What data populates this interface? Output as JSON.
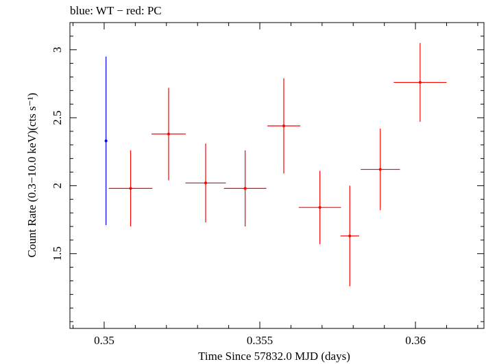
{
  "chart_data": {
    "type": "scatter",
    "title": "blue: WT − red: PC",
    "xlabel": "Time Since 57832.0 MJD (days)",
    "ylabel": "Count Rate (0.3−10.0 keV)(cts s⁻¹)",
    "xlim": [
      0.3489,
      0.3622
    ],
    "ylim": [
      0.95,
      3.2
    ],
    "x_ticks": [
      0.35,
      0.355,
      0.36
    ],
    "x_tick_labels": [
      "0.35",
      "0.355",
      "0.36"
    ],
    "y_ticks": [
      1.5,
      2,
      2.5,
      3
    ],
    "y_tick_labels": [
      "1.5",
      "2",
      "2.5",
      "3"
    ],
    "grid": false,
    "series": [
      {
        "name": "WT",
        "color": "#0000ff",
        "points": [
          {
            "x": 0.35006,
            "y": 2.33,
            "xerr": 3e-05,
            "yerr": 0.62
          }
        ]
      },
      {
        "name": "PC",
        "color": "#ff0000",
        "points": [
          {
            "x": 0.35085,
            "y": 1.98,
            "xerr": 0.0007,
            "yerr": 0.28
          },
          {
            "x": 0.35207,
            "y": 2.38,
            "xerr": 0.00055,
            "yerr": 0.34
          },
          {
            "x": 0.35326,
            "y": 2.02,
            "xerr": 0.00065,
            "yerr": 0.29
          },
          {
            "x": 0.35453,
            "y": 1.98,
            "xerr": 0.00068,
            "yerr": 0.28
          },
          {
            "x": 0.35577,
            "y": 2.44,
            "xerr": 0.00053,
            "yerr": 0.35
          },
          {
            "x": 0.35693,
            "y": 1.84,
            "xerr": 0.00068,
            "yerr": 0.27
          },
          {
            "x": 0.35789,
            "y": 1.63,
            "xerr": 0.0003,
            "yerr": 0.37
          },
          {
            "x": 0.35887,
            "y": 2.12,
            "xerr": 0.00063,
            "yerr": 0.3
          },
          {
            "x": 0.36015,
            "y": 2.76,
            "xerr": 0.00085,
            "yerr": 0.29
          }
        ]
      }
    ]
  }
}
